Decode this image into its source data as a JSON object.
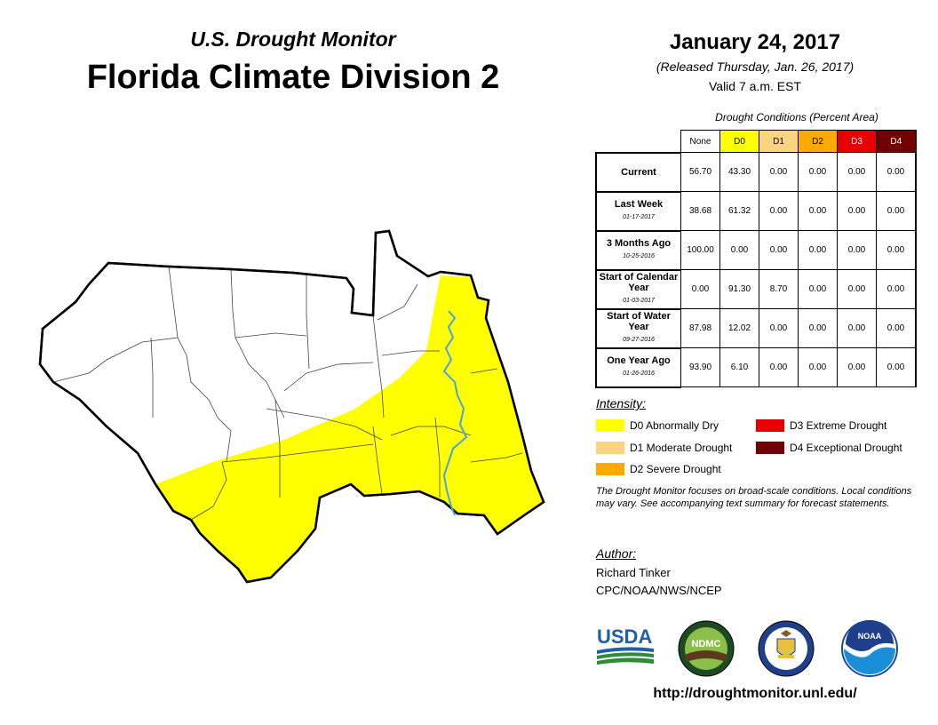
{
  "header": {
    "subtitle": "U.S. Drought Monitor",
    "title": "Florida Climate Division 2",
    "date": "January 24, 2017",
    "released": "(Released Thursday, Jan. 26, 2017)",
    "valid": "Valid 7 a.m. EST"
  },
  "table": {
    "caption": "Drought Conditions (Percent Area)",
    "columns": [
      "None",
      "D0",
      "D1",
      "D2",
      "D3",
      "D4"
    ],
    "column_colors": [
      "#ffffff",
      "#ffff00",
      "#fcd37f",
      "#ffaa00",
      "#e60000",
      "#730000"
    ],
    "rows": [
      {
        "label": "Current",
        "date": "",
        "values": [
          "56.70",
          "43.30",
          "0.00",
          "0.00",
          "0.00",
          "0.00"
        ]
      },
      {
        "label": "Last Week",
        "date": "01-17-2017",
        "values": [
          "38.68",
          "61.32",
          "0.00",
          "0.00",
          "0.00",
          "0.00"
        ]
      },
      {
        "label": "3 Months Ago",
        "date": "10-25-2016",
        "values": [
          "100.00",
          "0.00",
          "0.00",
          "0.00",
          "0.00",
          "0.00"
        ]
      },
      {
        "label": "Start of Calendar Year",
        "date": "01-03-2017",
        "values": [
          "0.00",
          "91.30",
          "8.70",
          "0.00",
          "0.00",
          "0.00"
        ]
      },
      {
        "label": "Start of Water Year",
        "date": "09-27-2016",
        "values": [
          "87.98",
          "12.02",
          "0.00",
          "0.00",
          "0.00",
          "0.00"
        ]
      },
      {
        "label": "One Year Ago",
        "date": "01-26-2016",
        "values": [
          "93.90",
          "6.10",
          "0.00",
          "0.00",
          "0.00",
          "0.00"
        ]
      }
    ]
  },
  "legend": {
    "heading": "Intensity:",
    "items": [
      {
        "label": "D0 Abnormally Dry",
        "color": "#ffff00"
      },
      {
        "label": "D1 Moderate Drought",
        "color": "#fcd37f"
      },
      {
        "label": "D2 Severe Drought",
        "color": "#ffaa00"
      },
      {
        "label": "D3 Extreme Drought",
        "color": "#e60000"
      },
      {
        "label": "D4 Exceptional Drought",
        "color": "#730000"
      }
    ]
  },
  "note": "The Drought Monitor focuses on broad-scale conditions. Local conditions may vary. See accompanying text summary for forecast statements.",
  "author": {
    "heading": "Author:",
    "name": "Richard Tinker",
    "org": "CPC/NOAA/NWS/NCEP"
  },
  "logos": {
    "usda": "USDA",
    "ndmc": "NDMC",
    "noaa": "NOAA"
  },
  "url": "http://droughtmonitor.unl.edu/",
  "map_colors": {
    "none": "#ffffff",
    "d0": "#ffff00",
    "water": "#4aa3df",
    "border": "#000000"
  }
}
